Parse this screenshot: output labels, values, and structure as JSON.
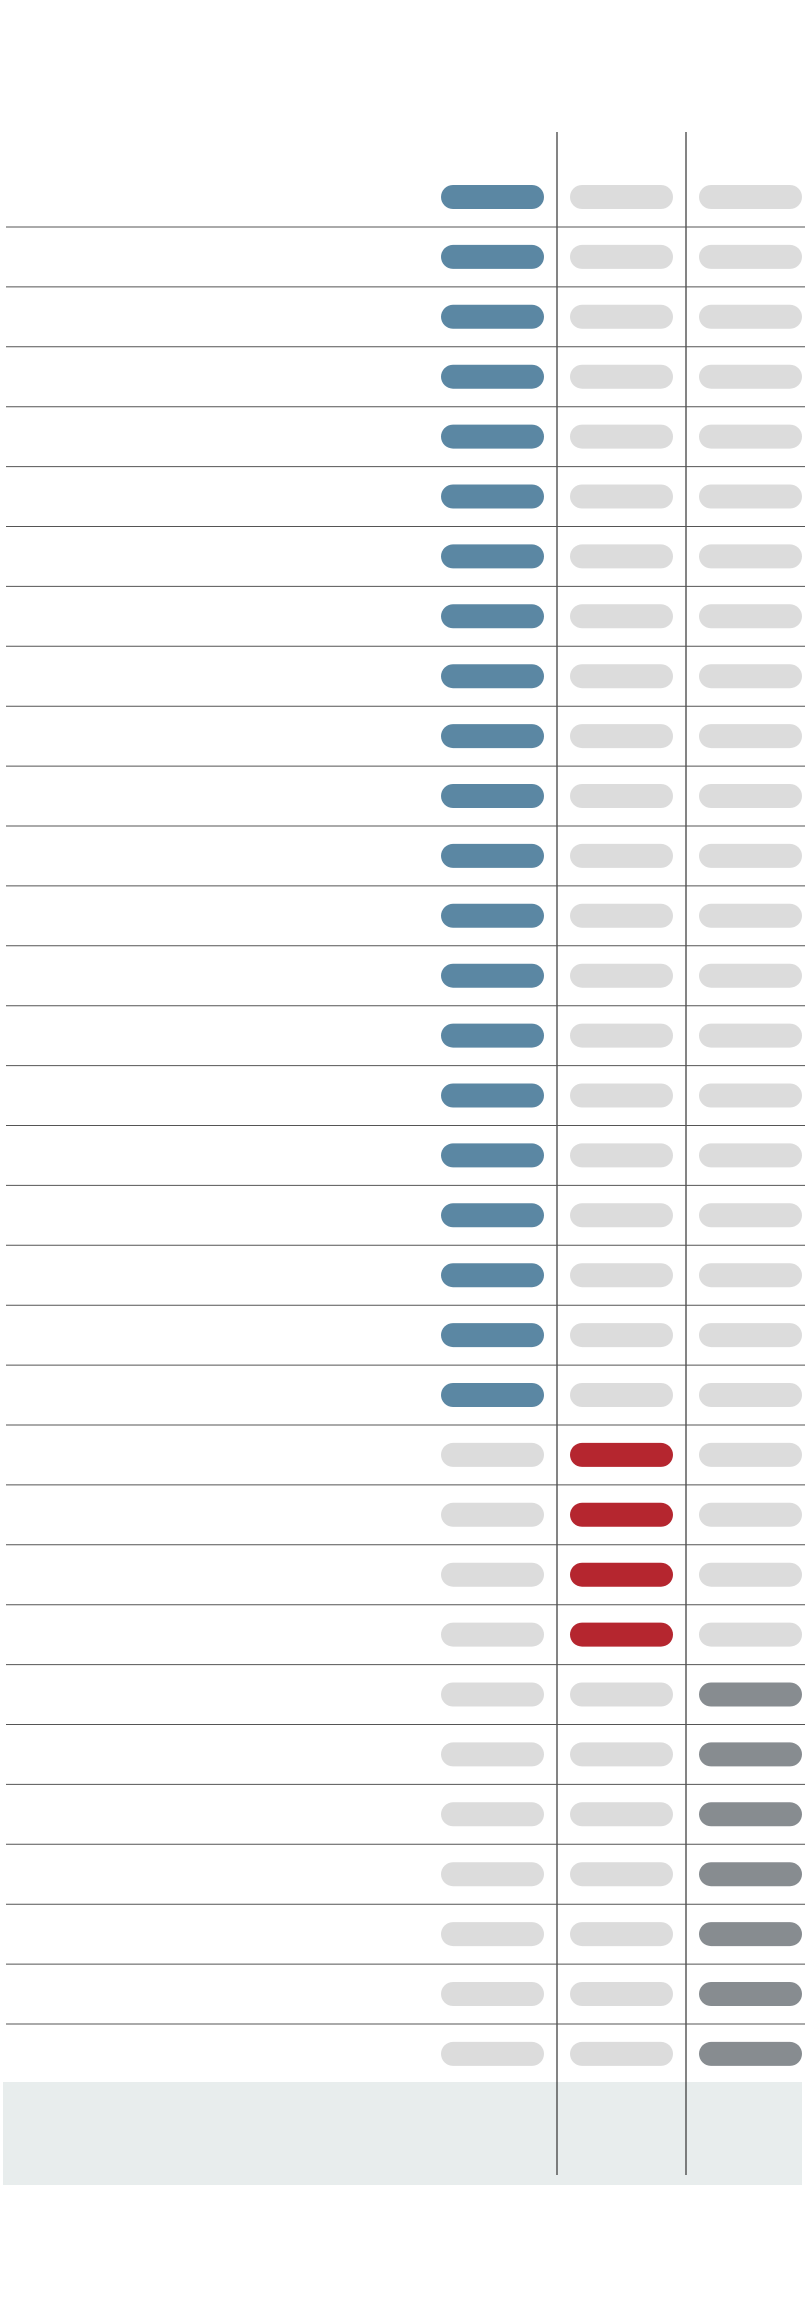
{
  "table": {
    "highlight_colors": [
      "#5b87a3",
      "#b5262f",
      "#878c90"
    ],
    "inactive_color": "#dcdcdc",
    "rows": [
      {
        "highlight": 0
      },
      {
        "highlight": 0
      },
      {
        "highlight": 0
      },
      {
        "highlight": 0
      },
      {
        "highlight": 0
      },
      {
        "highlight": 0
      },
      {
        "highlight": 0
      },
      {
        "highlight": 0
      },
      {
        "highlight": 0
      },
      {
        "highlight": 0
      },
      {
        "highlight": 0
      },
      {
        "highlight": 0
      },
      {
        "highlight": 0
      },
      {
        "highlight": 0
      },
      {
        "highlight": 0
      },
      {
        "highlight": 0
      },
      {
        "highlight": 0
      },
      {
        "highlight": 0
      },
      {
        "highlight": 0
      },
      {
        "highlight": 0
      },
      {
        "highlight": 0
      },
      {
        "highlight": 1
      },
      {
        "highlight": 1
      },
      {
        "highlight": 1
      },
      {
        "highlight": 1
      },
      {
        "highlight": 2
      },
      {
        "highlight": 2
      },
      {
        "highlight": 2
      },
      {
        "highlight": 2
      },
      {
        "highlight": 2
      },
      {
        "highlight": 2
      },
      {
        "highlight": 2
      }
    ]
  }
}
